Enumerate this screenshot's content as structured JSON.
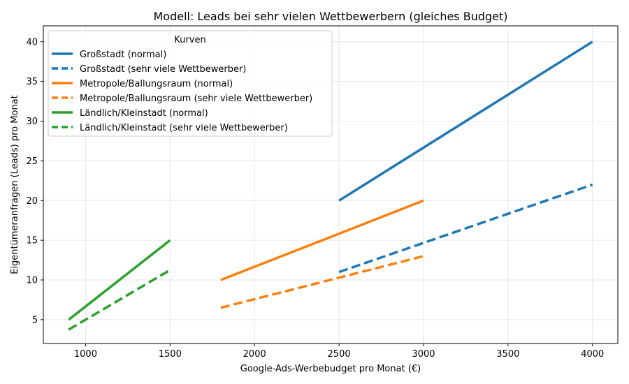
{
  "chart_data": {
    "type": "line",
    "title": "Modell: Leads bei sehr vielen Wettbewerbern (gleiches Budget)",
    "xlabel": "Google-Ads-Werbebudget pro Monat (€)",
    "ylabel": "Eigentümeranfragen (Leads) pro Monat",
    "xlim": [
      750,
      4150
    ],
    "ylim": [
      2,
      42
    ],
    "x_ticks": [
      1000,
      1500,
      2000,
      2500,
      3000,
      3500,
      4000
    ],
    "y_ticks": [
      5,
      10,
      15,
      20,
      25,
      30,
      35,
      40
    ],
    "grid": true,
    "legend": {
      "title": "Kurven",
      "placement": "top-left"
    },
    "colors": {
      "blue": "#1f77b4",
      "orange": "#ff7f0e",
      "green": "#2ca02c"
    },
    "series": [
      {
        "name": "Großstadt (normal)",
        "color": "#1f77b4",
        "style": "solid",
        "x": [
          2500,
          4000
        ],
        "y": [
          20,
          40
        ]
      },
      {
        "name": "Großstadt (sehr viele Wettbewerber)",
        "color": "#1f77b4",
        "style": "dashed",
        "x": [
          2500,
          4000
        ],
        "y": [
          11,
          22
        ]
      },
      {
        "name": "Metropole/Ballungsraum (normal)",
        "color": "#ff7f0e",
        "style": "solid",
        "x": [
          1800,
          3000
        ],
        "y": [
          10,
          20
        ]
      },
      {
        "name": "Metropole/Ballungsraum (sehr viele Wettbewerber)",
        "color": "#ff7f0e",
        "style": "dashed",
        "x": [
          1800,
          3000
        ],
        "y": [
          6.5,
          13
        ]
      },
      {
        "name": "Ländlich/Kleinstadt (normal)",
        "color": "#2ca02c",
        "style": "solid",
        "x": [
          900,
          1500
        ],
        "y": [
          5,
          15
        ]
      },
      {
        "name": "Ländlich/Kleinstadt (sehr viele Wettbewerber)",
        "color": "#2ca02c",
        "style": "dashed",
        "x": [
          900,
          1500
        ],
        "y": [
          3.75,
          11.25
        ]
      }
    ]
  }
}
